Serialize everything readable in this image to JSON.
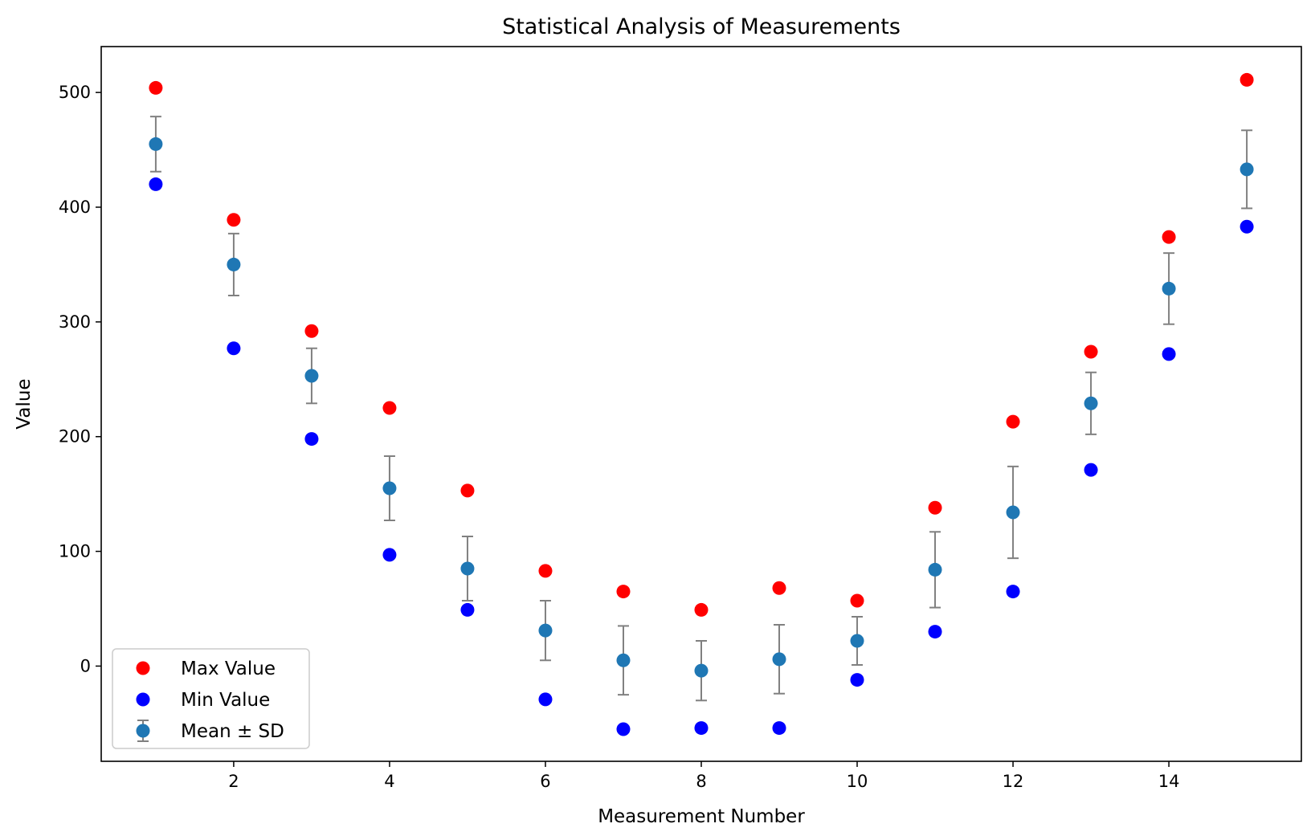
{
  "chart_data": {
    "type": "scatter",
    "title": "Statistical Analysis of Measurements",
    "xlabel": "Measurement Number",
    "ylabel": "Value",
    "xlim": [
      0.3,
      15.7
    ],
    "ylim": [
      -83,
      540
    ],
    "xticks": [
      2,
      4,
      6,
      8,
      10,
      12,
      14
    ],
    "yticks": [
      0,
      100,
      200,
      300,
      400,
      500
    ],
    "grid": false,
    "legend_position": "lower-left",
    "x": [
      1,
      2,
      3,
      4,
      5,
      6,
      7,
      8,
      9,
      10,
      11,
      12,
      13,
      14,
      15
    ],
    "series": [
      {
        "name": "Max Value",
        "color": "#ff0000",
        "marker": "circle",
        "values": [
          504,
          389,
          292,
          225,
          153,
          83,
          65,
          49,
          68,
          57,
          138,
          213,
          274,
          374,
          511
        ]
      },
      {
        "name": "Min Value",
        "color": "#0000ff",
        "marker": "circle",
        "values": [
          420,
          277,
          198,
          97,
          49,
          -29,
          -55,
          -54,
          -54,
          -12,
          30,
          65,
          171,
          272,
          383
        ]
      },
      {
        "name": "Mean ± SD",
        "color": "#1f77b4",
        "errorbar_color": "#808080",
        "marker": "circle-errorbar",
        "values": [
          455,
          350,
          253,
          155,
          85,
          31,
          5,
          -4,
          6,
          22,
          84,
          134,
          229,
          329,
          433
        ],
        "error": [
          24,
          27,
          24,
          28,
          28,
          26,
          30,
          26,
          30,
          21,
          33,
          40,
          27,
          31,
          34
        ]
      }
    ]
  }
}
